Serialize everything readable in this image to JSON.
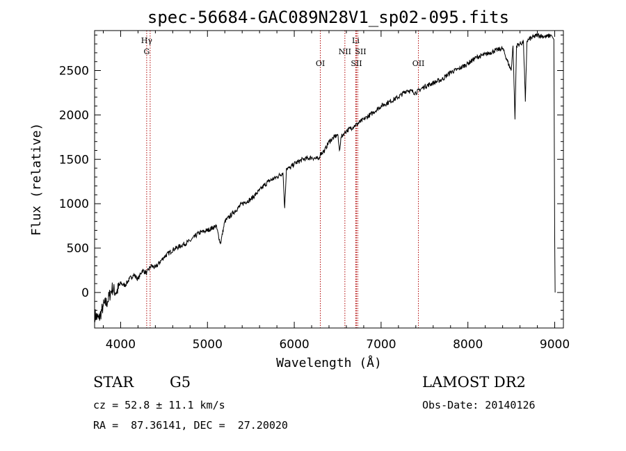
{
  "chart_data": {
    "type": "line",
    "title": "spec-56684-GAC089N28V1_sp02-095.fits",
    "xlabel": "Wavelength (Å)",
    "ylabel": "Flux (relative)",
    "xlim": [
      3700,
      9100
    ],
    "ylim": [
      -400,
      2950
    ],
    "xticks": [
      4000,
      5000,
      6000,
      7000,
      8000,
      9000
    ],
    "yticks": [
      0,
      500,
      1000,
      1500,
      2000,
      2500
    ],
    "grid": false,
    "series": [
      {
        "x": [
          3700,
          3750,
          3800,
          3850,
          3900,
          3950,
          4000,
          4050,
          4100,
          4150,
          4200,
          4250,
          4300,
          4350,
          4400,
          4500,
          4600,
          4700,
          4800,
          4900,
          5000,
          5100,
          5150,
          5200,
          5300,
          5400,
          5500,
          5600,
          5700,
          5800,
          5870,
          5890,
          5910,
          5950,
          6000,
          6100,
          6200,
          6280,
          6300,
          6350,
          6400,
          6500,
          6520,
          6540,
          6563,
          6580,
          6600,
          6700,
          6800,
          6900,
          7000,
          7100,
          7200,
          7300,
          7400,
          7500,
          7600,
          7700,
          7800,
          7900,
          8000,
          8100,
          8200,
          8300,
          8400,
          8498,
          8520,
          8542,
          8560,
          8600,
          8640,
          8662,
          8680,
          8700,
          8800,
          8900,
          8960,
          8990,
          9000,
          9005
        ],
        "values": [
          -250,
          -300,
          -150,
          -100,
          50,
          0,
          100,
          80,
          150,
          200,
          150,
          250,
          220,
          300,
          280,
          400,
          480,
          530,
          580,
          670,
          700,
          750,
          550,
          800,
          900,
          1000,
          1050,
          1150,
          1250,
          1300,
          1350,
          950,
          1400,
          1400,
          1450,
          1500,
          1520,
          1500,
          1560,
          1600,
          1700,
          1780,
          1600,
          1750,
          1780,
          1800,
          1820,
          1880,
          1950,
          2020,
          2100,
          2150,
          2200,
          2280,
          2250,
          2320,
          2360,
          2400,
          2480,
          2520,
          2580,
          2650,
          2680,
          2720,
          2750,
          2500,
          2780,
          1950,
          2780,
          2800,
          2820,
          2150,
          2830,
          2850,
          2900,
          2880,
          2900,
          2850,
          600,
          0
        ]
      }
    ],
    "lines": [
      {
        "wave": 4300,
        "top": "Hγ",
        "bottom": "G"
      },
      {
        "wave": 4340
      },
      {
        "wave": 6300,
        "bottom": "OI"
      },
      {
        "wave": 6583,
        "top": "NII"
      },
      {
        "wave": 6708,
        "top": "Li"
      },
      {
        "wave": 6716,
        "top": "SII",
        "bottom": "SII"
      },
      {
        "wave": 6731
      },
      {
        "wave": 7430,
        "bottom": "OII"
      }
    ],
    "line_color": "#b00000"
  },
  "info": {
    "obj_class": "STAR",
    "subclass": "G5",
    "redshift": "cz = 52.8 ± 11.1 km/s",
    "coords": "RA =  87.36141, DEC =  27.20020",
    "survey": "LAMOST DR2",
    "obs_date": "Obs-Date: 20140126"
  }
}
